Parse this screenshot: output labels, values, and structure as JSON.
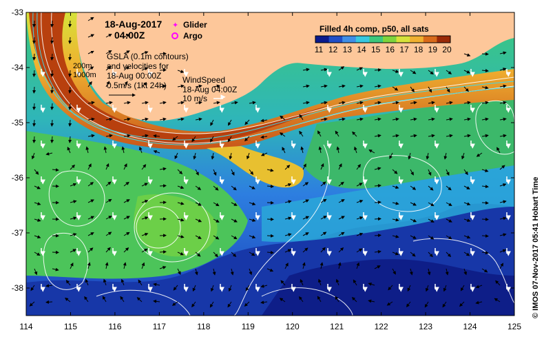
{
  "map": {
    "date_line": "18-Aug-2017",
    "time_line": "04:00Z",
    "legend": {
      "glider_label": "Glider",
      "argo_label": "Argo",
      "glider_color": "#ff00ff",
      "argo_color": "#ff00ff"
    },
    "annotations": {
      "isobath_200": "200m",
      "isobath_1000": "1000m",
      "gsla_line1": "GSLA (0.1m contours)",
      "gsla_line2": "and velocities for",
      "gsla_line3": "18-Aug 00:00Z",
      "gsla_scale": "0.5m/s (1kt 24h)",
      "wind_line1": "WindSpeed",
      "wind_line2": "18-Aug 04:00Z",
      "wind_scale": "10 m/s"
    },
    "colorbar": {
      "title": "Filled 4h comp, p50, all sats",
      "ticks": [
        "11",
        "12",
        "13",
        "14",
        "15",
        "16",
        "17",
        "18",
        "19",
        "20"
      ],
      "min": 11,
      "max": 20,
      "colors": [
        "#0a1a8c",
        "#1f4ec8",
        "#3f8ee6",
        "#38c8e0",
        "#3cc87c",
        "#7ed43c",
        "#d6e23a",
        "#f0b030",
        "#d86a1a",
        "#9a2a08"
      ]
    },
    "credit": "© IMOS 07-Nov-2017 05:41 Hobart Time",
    "x_ticks": [
      "114",
      "115",
      "116",
      "117",
      "118",
      "119",
      "120",
      "121",
      "122",
      "123",
      "124",
      "125"
    ],
    "y_ticks": [
      "-33",
      "-34",
      "-35",
      "-36",
      "-37",
      "-38"
    ],
    "x_range": [
      114,
      125
    ],
    "y_range": [
      -33,
      -38.5
    ],
    "land_color": "#fdc79a"
  }
}
